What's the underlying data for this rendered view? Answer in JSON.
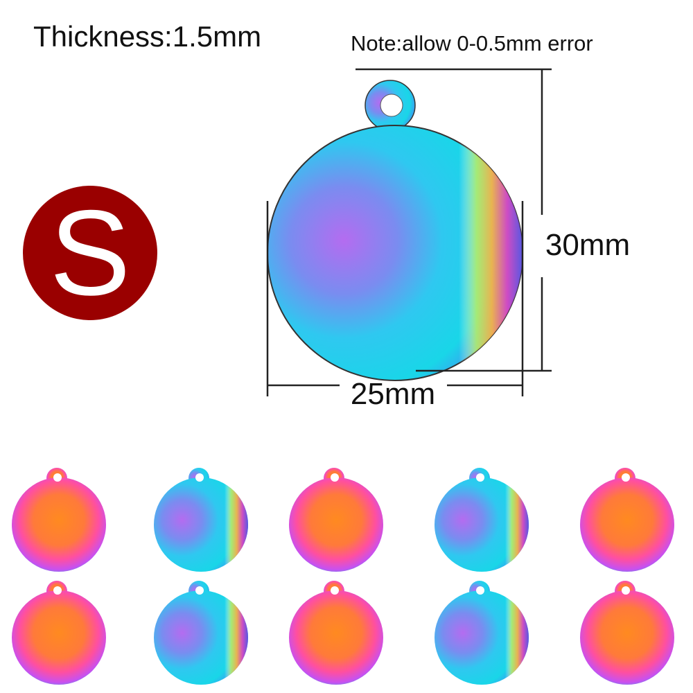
{
  "header": {
    "title": "Thickness:1.5mm",
    "note": "Note:allow 0-0.5mm error"
  },
  "size_badge": "S",
  "dimensions": {
    "height": "30mm",
    "width": "25mm"
  }
}
